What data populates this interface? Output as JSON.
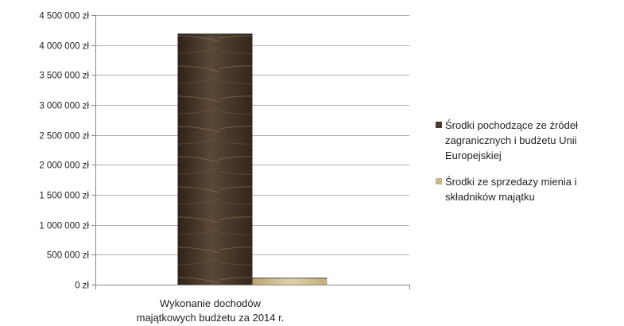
{
  "chart_data": {
    "type": "bar",
    "title": "",
    "xlabel": "",
    "ylabel": "",
    "ylim": [
      0,
      4500000
    ],
    "yticks": [
      0,
      500000,
      1000000,
      1500000,
      2000000,
      2500000,
      3000000,
      3500000,
      4000000,
      4500000
    ],
    "ytick_labels": [
      "0 zł",
      "500 000 zł",
      "1 000 000 zł",
      "1 500 000 zł",
      "2 000 000 zł",
      "2 500 000 zł",
      "3 000 000 zł",
      "3 500 000 zł",
      "4 000 000 zł",
      "4 500 000 zł"
    ],
    "categories": [
      "Wykonanie dochodów majątkowych budżetu za 2014 r."
    ],
    "category_label_lines": [
      "Wykonanie dochodów",
      "majątkowych budżetu za 2014 r."
    ],
    "grid": true,
    "legend_position": "right",
    "series": [
      {
        "name": "Środki pochodzące ze źródeł zagranicznych i budżetu Unii Europejskiej",
        "values": [
          4190000
        ],
        "color": "#4a3a2c"
      },
      {
        "name": "Środki ze sprzedazy mienia i składników majątku",
        "values": [
          120000
        ],
        "color": "#c9b78a"
      }
    ]
  },
  "legend": {
    "items": [
      {
        "lines": [
          "Środki pochodzące ze źródeł",
          "zagranicznych i budżetu Unii",
          "Europejskiej"
        ]
      },
      {
        "lines": [
          "Środki ze sprzedazy mienia i",
          "składników majątku"
        ]
      }
    ]
  }
}
